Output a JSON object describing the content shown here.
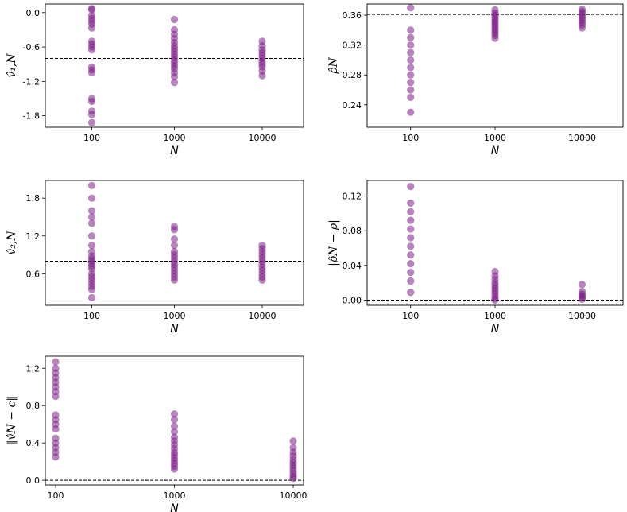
{
  "colors": {
    "point": "#7b1f86",
    "point_alpha": 0.55,
    "reference_line": "#000000"
  },
  "chart_data": [
    {
      "type": "scatter",
      "id": "v1",
      "ylabel": "v̂₁,N",
      "xlabel": "N",
      "categories": [
        "100",
        "1000",
        "10000"
      ],
      "ylim": [
        -2.0,
        0.15
      ],
      "yticks": [
        0.0,
        -0.6,
        -1.2,
        -1.8
      ],
      "ytick_labels": [
        "0.0",
        "-0.6",
        "-1.2",
        "-1.8"
      ],
      "reference": -0.8,
      "series": [
        {
          "name": "100",
          "values": [
            0.07,
            0.05,
            -0.05,
            -0.1,
            -0.15,
            -0.2,
            -0.27,
            -0.5,
            -0.55,
            -0.6,
            -0.65,
            -0.95,
            -1.0,
            -1.05,
            -1.5,
            -1.55,
            -1.72,
            -1.78,
            -1.92
          ]
        },
        {
          "name": "1000",
          "values": [
            -0.12,
            -0.3,
            -0.38,
            -0.45,
            -0.52,
            -0.58,
            -0.63,
            -0.68,
            -0.73,
            -0.78,
            -0.83,
            -0.88,
            -0.93,
            -0.98,
            -1.05,
            -1.12,
            -1.22
          ]
        },
        {
          "name": "10000",
          "values": [
            -0.5,
            -0.58,
            -0.65,
            -0.7,
            -0.75,
            -0.8,
            -0.85,
            -0.9,
            -0.95,
            -1.02,
            -1.1
          ]
        }
      ]
    },
    {
      "type": "scatter",
      "id": "rho",
      "ylabel": "ρ̂N",
      "xlabel": "N",
      "categories": [
        "100",
        "1000",
        "10000"
      ],
      "ylim": [
        0.21,
        0.375
      ],
      "yticks": [
        0.36,
        0.32,
        0.28,
        0.24
      ],
      "ytick_labels": [
        "0.36",
        "0.32",
        "0.28",
        "0.24"
      ],
      "reference": 0.361,
      "series": [
        {
          "name": "100",
          "values": [
            0.37,
            0.34,
            0.33,
            0.32,
            0.31,
            0.3,
            0.29,
            0.28,
            0.27,
            0.26,
            0.25,
            0.23
          ]
        },
        {
          "name": "1000",
          "values": [
            0.367,
            0.363,
            0.36,
            0.357,
            0.354,
            0.351,
            0.348,
            0.345,
            0.342,
            0.339,
            0.336,
            0.333,
            0.329
          ]
        },
        {
          "name": "10000",
          "values": [
            0.368,
            0.365,
            0.362,
            0.359,
            0.356,
            0.353,
            0.35,
            0.347,
            0.343
          ]
        }
      ]
    },
    {
      "type": "scatter",
      "id": "v2",
      "ylabel": "v̂₂,N",
      "xlabel": "N",
      "categories": [
        "100",
        "1000",
        "10000"
      ],
      "ylim": [
        0.1,
        2.08
      ],
      "yticks": [
        1.8,
        1.2,
        0.6
      ],
      "ytick_labels": [
        "1.8",
        "1.2",
        "0.6"
      ],
      "reference": 0.8,
      "series": [
        {
          "name": "100",
          "values": [
            2.0,
            1.8,
            1.6,
            1.5,
            1.4,
            1.2,
            1.05,
            0.95,
            0.88,
            0.84,
            0.8,
            0.76,
            0.72,
            0.68,
            0.6,
            0.55,
            0.5,
            0.45,
            0.4,
            0.35,
            0.22
          ]
        },
        {
          "name": "1000",
          "values": [
            1.35,
            1.3,
            1.15,
            1.05,
            0.95,
            0.9,
            0.85,
            0.8,
            0.75,
            0.7,
            0.65,
            0.6,
            0.55,
            0.5
          ]
        },
        {
          "name": "10000",
          "values": [
            1.05,
            1.0,
            0.95,
            0.9,
            0.85,
            0.8,
            0.75,
            0.7,
            0.65,
            0.6,
            0.55,
            0.5
          ]
        }
      ]
    },
    {
      "type": "scatter",
      "id": "absdiff",
      "ylabel": "|ρ̂N − ρ|",
      "xlabel": "N",
      "categories": [
        "100",
        "1000",
        "10000"
      ],
      "ylim": [
        -0.006,
        0.138
      ],
      "yticks": [
        0.12,
        0.08,
        0.04,
        0.0
      ],
      "ytick_labels": [
        "0.12",
        "0.08",
        "0.04",
        "0.00"
      ],
      "reference": 0.0,
      "series": [
        {
          "name": "100",
          "values": [
            0.131,
            0.112,
            0.102,
            0.092,
            0.082,
            0.072,
            0.062,
            0.052,
            0.042,
            0.032,
            0.022,
            0.009
          ]
        },
        {
          "name": "1000",
          "values": [
            0.033,
            0.028,
            0.024,
            0.02,
            0.017,
            0.014,
            0.011,
            0.008,
            0.005,
            0.002,
            0.0
          ]
        },
        {
          "name": "10000",
          "values": [
            0.018,
            0.01,
            0.007,
            0.005,
            0.003,
            0.001
          ]
        }
      ]
    },
    {
      "type": "scatter",
      "id": "norm",
      "ylabel": "‖v̂N − c‖",
      "xlabel": "N",
      "categories": [
        "100",
        "1000",
        "10000"
      ],
      "ylim": [
        -0.05,
        1.33
      ],
      "yticks": [
        1.2,
        0.8,
        0.4,
        0.0
      ],
      "ytick_labels": [
        "1.2",
        "0.8",
        "0.4",
        "0.0"
      ],
      "reference": 0.0,
      "series": [
        {
          "name": "100",
          "values": [
            1.27,
            1.2,
            1.15,
            1.1,
            1.05,
            1.0,
            0.95,
            0.9,
            0.7,
            0.65,
            0.6,
            0.55,
            0.45,
            0.4,
            0.35,
            0.3,
            0.25
          ]
        },
        {
          "name": "1000",
          "values": [
            0.71,
            0.65,
            0.58,
            0.52,
            0.46,
            0.42,
            0.38,
            0.34,
            0.3,
            0.27,
            0.24,
            0.21,
            0.18,
            0.15,
            0.12
          ]
        },
        {
          "name": "10000",
          "values": [
            0.42,
            0.35,
            0.3,
            0.26,
            0.22,
            0.19,
            0.16,
            0.13,
            0.1,
            0.07,
            0.04,
            0.02
          ]
        }
      ]
    }
  ]
}
